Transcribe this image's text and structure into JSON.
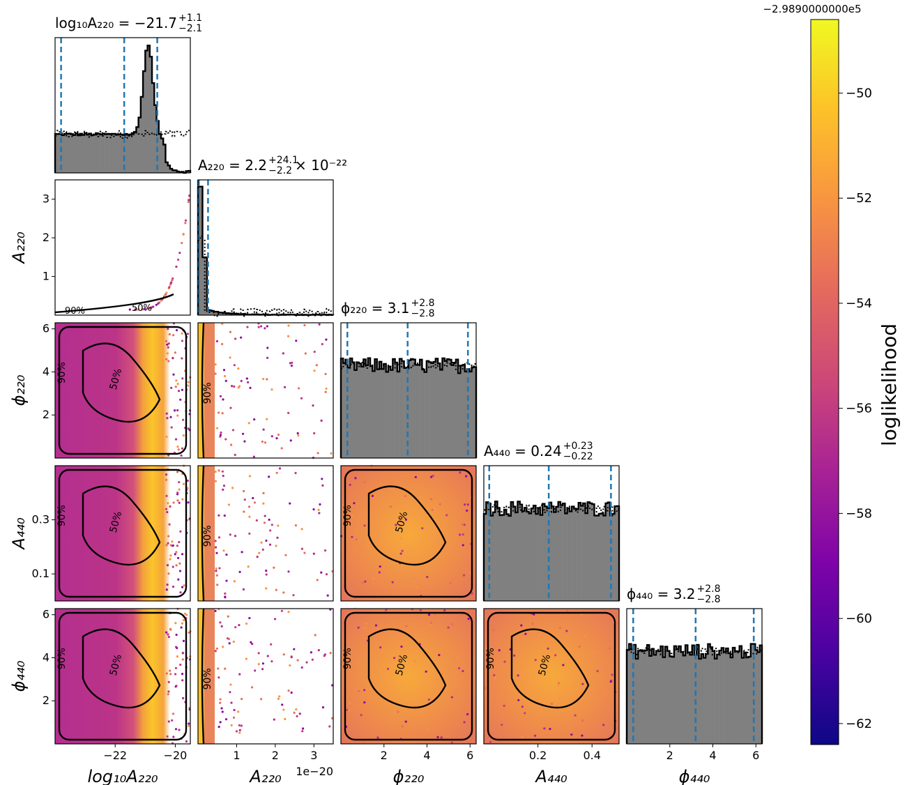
{
  "figure": {
    "offset_text_colorbar": "−2.9890000000e5"
  },
  "params": [
    {
      "key": "log10A220",
      "title": "log₁₀A₂₂₀ = −21.7",
      "title_sup": "+1.1",
      "title_sub": "−2.1",
      "xlabel": "log₁₀A₂₂₀",
      "ylabel": "",
      "ticks": [
        -22,
        -20
      ],
      "tick_labels": [
        "−22",
        "−20"
      ],
      "range": [
        -24,
        -19.5
      ],
      "quantiles": [
        -23.8,
        -21.7,
        -20.6
      ],
      "sci_offset": ""
    },
    {
      "key": "A220",
      "title": "A₂₂₀ = 2.2",
      "title_sup": "+24.1",
      "title_sub": "−2.2",
      "title_suffix": "× 10⁻²²",
      "xlabel": "A₂₂₀",
      "ylabel": "A₂₂₀",
      "ticks": [
        1,
        2,
        3
      ],
      "tick_labels": [
        "1",
        "2",
        "3"
      ],
      "range": [
        0,
        3.5
      ],
      "quantiles": [
        0.0,
        0.022,
        0.26
      ],
      "sci_offset": "1e−20"
    },
    {
      "key": "phi220",
      "title": "ϕ₂₂₀ = 3.1",
      "title_sup": "+2.8",
      "title_sub": "−2.8",
      "xlabel": "ϕ₂₂₀",
      "ylabel": "ϕ₂₂₀",
      "ticks": [
        2,
        4,
        6
      ],
      "tick_labels": [
        "2",
        "4",
        "6"
      ],
      "range": [
        0,
        6.283
      ],
      "quantiles": [
        0.3,
        3.1,
        5.9
      ],
      "sci_offset": ""
    },
    {
      "key": "A440",
      "title": "A₄₄₀ = 0.24",
      "title_sup": "+0.23",
      "title_sub": "−0.22",
      "xlabel": "A₄₄₀",
      "ylabel": "A₄₄₀",
      "ticks": [
        0.1,
        0.3
      ],
      "tick_labels": [
        "0.1",
        "0.3"
      ],
      "xticks": [
        0.2,
        0.4
      ],
      "xtick_labels": [
        "0.2",
        "0.4"
      ],
      "range": [
        0,
        0.5
      ],
      "quantiles": [
        0.02,
        0.24,
        0.47
      ],
      "sci_offset": ""
    },
    {
      "key": "phi440",
      "title": "ϕ₄₄₀ = 3.2",
      "title_sup": "+2.8",
      "title_sub": "−2.8",
      "xlabel": "ϕ₄₄₀",
      "ylabel": "ϕ₄₄₀",
      "ticks": [
        2,
        4,
        6
      ],
      "tick_labels": [
        "2",
        "4",
        "6"
      ],
      "range": [
        0,
        6.283
      ],
      "quantiles": [
        0.3,
        3.2,
        5.9
      ],
      "sci_offset": ""
    }
  ],
  "chart_data": {
    "type": "scatter",
    "subtype": "corner-plot",
    "colorbar": {
      "label": "loglikelihood",
      "colormap": "plasma",
      "range": [
        -62.4,
        -48.6
      ],
      "ticks": [
        -62,
        -60,
        -58,
        -56,
        -54,
        -52,
        -50
      ],
      "tick_labels": [
        "−62",
        "−60",
        "−58",
        "−56",
        "−54",
        "−52",
        "−50"
      ],
      "offset": "−2.9890000000e5"
    },
    "contour_levels": [
      "50%",
      "90%"
    ],
    "histogram_colors": {
      "fill": "#808080",
      "edge": "#000000",
      "prior": "#000000",
      "quantile_line": "#1f77b4"
    },
    "marginals": [
      {
        "param": "log10A220",
        "bins_x": [
          -24,
          -23.5,
          -23,
          -22.5,
          -22,
          -21.5,
          -21.3,
          -21.1,
          -20.9,
          -20.7,
          -20.5,
          -20.3,
          -20,
          -19.5
        ],
        "posterior_density": [
          0.3,
          0.31,
          0.3,
          0.31,
          0.32,
          0.45,
          0.7,
          0.92,
          1.0,
          0.6,
          0.25,
          0.08,
          0.01
        ],
        "prior_density": [
          0.3,
          0.3,
          0.3,
          0.3,
          0.3,
          0.3,
          0.3,
          0.3,
          0.3,
          0.3,
          0.3,
          0.3,
          0.3
        ]
      },
      {
        "param": "A220",
        "posterior_density_note": "sharply peaked near 0",
        "peak_value": 0.0
      },
      {
        "param": "phi220",
        "shape": "approximately uniform"
      },
      {
        "param": "A440",
        "shape": "approximately uniform"
      },
      {
        "param": "phi440",
        "shape": "approximately uniform"
      }
    ]
  }
}
